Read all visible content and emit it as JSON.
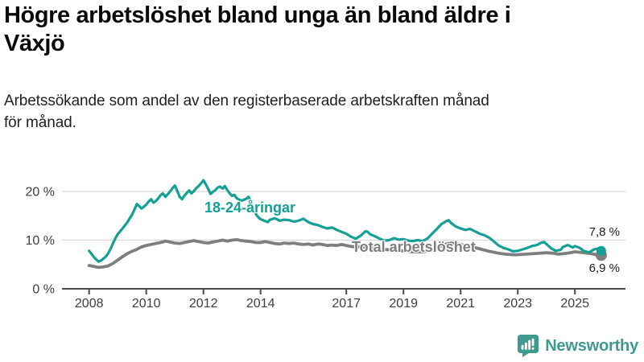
{
  "header": {
    "title_lines": [
      "Högre arbetslöshet bland unga än bland äldre i",
      "Växjö"
    ],
    "subtitle_lines": [
      "Arbetssökande som andel av den registerbaserade arbetskraften månad",
      "för månad."
    ]
  },
  "footer": {
    "brand": "Newsworthy",
    "brand_color": "#3e998f"
  },
  "chart_data": {
    "type": "line",
    "title": "Högre arbetslöshet bland unga än bland äldre i Växjö",
    "subtitle": "Arbetssökande som andel av den registerbaserade arbetskraften månad för månad.",
    "x_unit": "year (monthly data)",
    "ylabel": "",
    "xlabel": "",
    "ylim": [
      0,
      23
    ],
    "xlim": [
      2007.05,
      2026.8
    ],
    "grid": "horizontal",
    "legend_position": "inline-labels",
    "style": {
      "grid_color": "#d8d8d8",
      "axis_color": "#4b4b4b",
      "tick_text_color": "#3d3d3d",
      "end_label_color": "#1c1c1c"
    },
    "y_ticks": [
      {
        "value": 0,
        "label": "0 %"
      },
      {
        "value": 10,
        "label": "10 %"
      },
      {
        "value": 20,
        "label": "20 %"
      }
    ],
    "x_ticks": [
      {
        "value": 2008,
        "label": "2008"
      },
      {
        "value": 2010,
        "label": "2010"
      },
      {
        "value": 2012,
        "label": "2012"
      },
      {
        "value": 2014,
        "label": "2014"
      },
      {
        "value": 2017,
        "label": "2017"
      },
      {
        "value": 2019,
        "label": "2019"
      },
      {
        "value": 2021,
        "label": "2021"
      },
      {
        "value": 2023,
        "label": "2023"
      },
      {
        "value": 2025,
        "label": "2025"
      }
    ],
    "series": [
      {
        "name": "18-24-åringar",
        "color": "#14a094",
        "stroke_width": 3.2,
        "end_label": "7,8 %",
        "end_value": 7.8,
        "end_dot_radius": 6,
        "points": [
          [
            2008.0,
            7.8
          ],
          [
            2008.08,
            7.2
          ],
          [
            2008.17,
            6.5
          ],
          [
            2008.25,
            6.0
          ],
          [
            2008.33,
            5.6
          ],
          [
            2008.42,
            5.8
          ],
          [
            2008.5,
            6.2
          ],
          [
            2008.58,
            6.6
          ],
          [
            2008.67,
            7.3
          ],
          [
            2008.75,
            8.2
          ],
          [
            2008.83,
            9.3
          ],
          [
            2008.92,
            10.4
          ],
          [
            2009.0,
            11.2
          ],
          [
            2009.17,
            12.4
          ],
          [
            2009.33,
            13.6
          ],
          [
            2009.5,
            15.2
          ],
          [
            2009.58,
            16.2
          ],
          [
            2009.67,
            17.4
          ],
          [
            2009.75,
            17.0
          ],
          [
            2009.83,
            16.5
          ],
          [
            2009.92,
            16.9
          ],
          [
            2010.0,
            17.3
          ],
          [
            2010.08,
            17.9
          ],
          [
            2010.17,
            18.4
          ],
          [
            2010.25,
            17.7
          ],
          [
            2010.33,
            18.0
          ],
          [
            2010.42,
            18.6
          ],
          [
            2010.5,
            19.2
          ],
          [
            2010.58,
            19.6
          ],
          [
            2010.67,
            18.9
          ],
          [
            2010.75,
            19.4
          ],
          [
            2010.83,
            20.0
          ],
          [
            2010.92,
            20.7
          ],
          [
            2011.0,
            21.2
          ],
          [
            2011.08,
            20.2
          ],
          [
            2011.17,
            18.9
          ],
          [
            2011.25,
            18.4
          ],
          [
            2011.33,
            19.1
          ],
          [
            2011.42,
            19.7
          ],
          [
            2011.5,
            20.2
          ],
          [
            2011.58,
            19.6
          ],
          [
            2011.67,
            20.1
          ],
          [
            2011.75,
            20.7
          ],
          [
            2011.83,
            21.1
          ],
          [
            2011.92,
            21.7
          ],
          [
            2012.0,
            22.3
          ],
          [
            2012.08,
            21.5
          ],
          [
            2012.17,
            20.5
          ],
          [
            2012.25,
            19.5
          ],
          [
            2012.33,
            19.9
          ],
          [
            2012.42,
            20.3
          ],
          [
            2012.5,
            20.8
          ],
          [
            2012.58,
            21.0
          ],
          [
            2012.67,
            20.6
          ],
          [
            2012.75,
            21.1
          ],
          [
            2012.83,
            20.3
          ],
          [
            2012.92,
            19.6
          ],
          [
            2013.0,
            19.1
          ],
          [
            2013.08,
            19.3
          ],
          [
            2013.17,
            18.6
          ],
          [
            2013.33,
            18.1
          ],
          [
            2013.5,
            18.5
          ],
          [
            2013.58,
            18.9
          ],
          [
            2013.67,
            17.8
          ],
          [
            2013.75,
            16.5
          ],
          [
            2013.83,
            15.4
          ],
          [
            2013.92,
            14.7
          ],
          [
            2014.0,
            14.3
          ],
          [
            2014.17,
            13.9
          ],
          [
            2014.25,
            13.7
          ],
          [
            2014.33,
            14.2
          ],
          [
            2014.5,
            14.5
          ],
          [
            2014.67,
            14.0
          ],
          [
            2014.83,
            14.2
          ],
          [
            2015.0,
            14.1
          ],
          [
            2015.17,
            13.8
          ],
          [
            2015.33,
            14.0
          ],
          [
            2015.5,
            14.4
          ],
          [
            2015.67,
            13.7
          ],
          [
            2015.83,
            13.3
          ],
          [
            2016.0,
            13.1
          ],
          [
            2016.17,
            12.7
          ],
          [
            2016.33,
            12.4
          ],
          [
            2016.5,
            12.6
          ],
          [
            2016.67,
            12.1
          ],
          [
            2016.83,
            11.7
          ],
          [
            2017.0,
            11.3
          ],
          [
            2017.17,
            10.7
          ],
          [
            2017.33,
            10.3
          ],
          [
            2017.5,
            10.9
          ],
          [
            2017.67,
            11.8
          ],
          [
            2017.75,
            11.7
          ],
          [
            2017.83,
            11.2
          ],
          [
            2018.0,
            10.8
          ],
          [
            2018.17,
            10.3
          ],
          [
            2018.33,
            9.9
          ],
          [
            2018.5,
            10.0
          ],
          [
            2018.67,
            10.4
          ],
          [
            2018.83,
            10.1
          ],
          [
            2019.0,
            10.2
          ],
          [
            2019.17,
            9.9
          ],
          [
            2019.33,
            9.8
          ],
          [
            2019.5,
            10.0
          ],
          [
            2019.67,
            9.8
          ],
          [
            2019.83,
            10.3
          ],
          [
            2020.0,
            11.3
          ],
          [
            2020.17,
            12.3
          ],
          [
            2020.33,
            13.3
          ],
          [
            2020.5,
            13.9
          ],
          [
            2020.58,
            14.1
          ],
          [
            2020.67,
            13.5
          ],
          [
            2020.83,
            12.8
          ],
          [
            2021.0,
            12.4
          ],
          [
            2021.17,
            12.1
          ],
          [
            2021.33,
            12.3
          ],
          [
            2021.5,
            11.8
          ],
          [
            2021.67,
            11.3
          ],
          [
            2021.83,
            11.0
          ],
          [
            2022.0,
            10.5
          ],
          [
            2022.17,
            9.7
          ],
          [
            2022.33,
            8.9
          ],
          [
            2022.5,
            8.4
          ],
          [
            2022.67,
            8.1
          ],
          [
            2022.83,
            7.7
          ],
          [
            2023.0,
            7.8
          ],
          [
            2023.17,
            8.1
          ],
          [
            2023.33,
            8.4
          ],
          [
            2023.5,
            8.8
          ],
          [
            2023.67,
            9.0
          ],
          [
            2023.83,
            9.5
          ],
          [
            2023.92,
            9.6
          ],
          [
            2024.0,
            9.2
          ],
          [
            2024.17,
            8.3
          ],
          [
            2024.33,
            7.8
          ],
          [
            2024.5,
            8.0
          ],
          [
            2024.58,
            8.6
          ],
          [
            2024.75,
            9.0
          ],
          [
            2024.92,
            8.5
          ],
          [
            2025.0,
            8.8
          ],
          [
            2025.17,
            8.4
          ],
          [
            2025.33,
            7.7
          ],
          [
            2025.5,
            7.5
          ],
          [
            2025.67,
            8.1
          ],
          [
            2025.83,
            8.3
          ],
          [
            2025.92,
            7.8
          ]
        ]
      },
      {
        "name": "Total arbetslöshet",
        "color": "#7e7e7e",
        "stroke_width": 3.8,
        "end_label": "6,9 %",
        "end_value": 6.9,
        "end_dot_radius": 7,
        "points": [
          [
            2008.0,
            4.8
          ],
          [
            2008.17,
            4.6
          ],
          [
            2008.33,
            4.4
          ],
          [
            2008.5,
            4.5
          ],
          [
            2008.67,
            4.7
          ],
          [
            2008.83,
            5.2
          ],
          [
            2009.0,
            5.9
          ],
          [
            2009.17,
            6.6
          ],
          [
            2009.33,
            7.2
          ],
          [
            2009.5,
            7.7
          ],
          [
            2009.67,
            8.1
          ],
          [
            2009.83,
            8.6
          ],
          [
            2010.0,
            8.9
          ],
          [
            2010.17,
            9.1
          ],
          [
            2010.33,
            9.3
          ],
          [
            2010.5,
            9.5
          ],
          [
            2010.67,
            9.8
          ],
          [
            2010.83,
            9.6
          ],
          [
            2011.0,
            9.4
          ],
          [
            2011.17,
            9.3
          ],
          [
            2011.33,
            9.5
          ],
          [
            2011.5,
            9.7
          ],
          [
            2011.67,
            9.9
          ],
          [
            2011.83,
            9.7
          ],
          [
            2012.0,
            9.5
          ],
          [
            2012.17,
            9.4
          ],
          [
            2012.33,
            9.6
          ],
          [
            2012.5,
            9.8
          ],
          [
            2012.67,
            10.0
          ],
          [
            2012.83,
            9.8
          ],
          [
            2013.0,
            10.0
          ],
          [
            2013.17,
            10.1
          ],
          [
            2013.33,
            9.9
          ],
          [
            2013.5,
            9.8
          ],
          [
            2013.67,
            9.7
          ],
          [
            2013.83,
            9.5
          ],
          [
            2014.0,
            9.5
          ],
          [
            2014.17,
            9.7
          ],
          [
            2014.33,
            9.5
          ],
          [
            2014.5,
            9.3
          ],
          [
            2014.67,
            9.2
          ],
          [
            2014.83,
            9.4
          ],
          [
            2015.0,
            9.3
          ],
          [
            2015.17,
            9.4
          ],
          [
            2015.33,
            9.2
          ],
          [
            2015.5,
            9.1
          ],
          [
            2015.67,
            9.2
          ],
          [
            2015.83,
            9.0
          ],
          [
            2016.0,
            9.2
          ],
          [
            2016.17,
            9.1
          ],
          [
            2016.33,
            8.9
          ],
          [
            2016.5,
            9.0
          ],
          [
            2016.67,
            8.9
          ],
          [
            2016.83,
            9.1
          ],
          [
            2017.0,
            8.9
          ],
          [
            2017.17,
            8.7
          ],
          [
            2017.33,
            8.6
          ],
          [
            2017.5,
            8.7
          ],
          [
            2017.67,
            8.5
          ],
          [
            2017.83,
            8.4
          ],
          [
            2018.0,
            8.3
          ],
          [
            2018.33,
            8.1
          ],
          [
            2018.67,
            7.9
          ],
          [
            2019.0,
            7.8
          ],
          [
            2019.33,
            7.6
          ],
          [
            2019.67,
            7.6
          ],
          [
            2020.0,
            7.9
          ],
          [
            2020.33,
            8.8
          ],
          [
            2020.5,
            9.2
          ],
          [
            2020.67,
            9.4
          ],
          [
            2021.0,
            9.1
          ],
          [
            2021.33,
            8.7
          ],
          [
            2021.67,
            8.2
          ],
          [
            2022.0,
            7.7
          ],
          [
            2022.33,
            7.3
          ],
          [
            2022.58,
            7.1
          ],
          [
            2022.83,
            7.0
          ],
          [
            2023.0,
            7.0
          ],
          [
            2023.25,
            7.1
          ],
          [
            2023.5,
            7.2
          ],
          [
            2023.75,
            7.3
          ],
          [
            2024.0,
            7.4
          ],
          [
            2024.25,
            7.3
          ],
          [
            2024.42,
            7.1
          ],
          [
            2024.58,
            7.2
          ],
          [
            2024.83,
            7.4
          ],
          [
            2025.0,
            7.6
          ],
          [
            2025.17,
            7.5
          ],
          [
            2025.33,
            7.4
          ],
          [
            2025.58,
            7.2
          ],
          [
            2025.75,
            7.0
          ],
          [
            2025.92,
            6.9
          ]
        ]
      }
    ]
  }
}
